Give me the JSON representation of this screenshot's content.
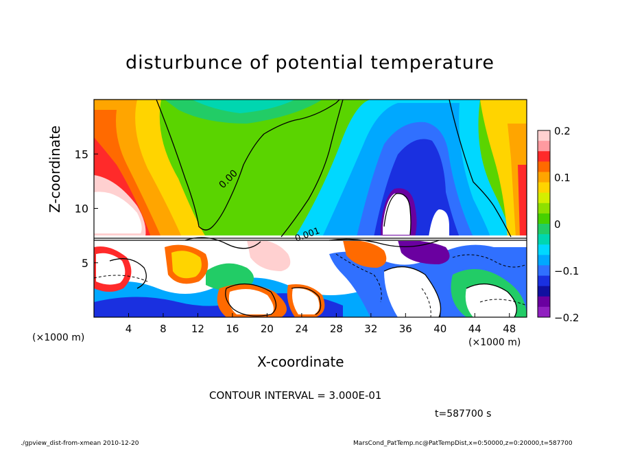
{
  "chart_data": {
    "type": "heatmap",
    "title": "disturbunce of potential temperature",
    "xlabel": "X-coordinate",
    "ylabel": "Z-coordinate",
    "x_unit_left": "(×1000 m)",
    "x_unit_right": "(×1000 m)",
    "xlim": [
      0,
      50
    ],
    "ylim": [
      0,
      20
    ],
    "xticks": [
      "4",
      "8",
      "12",
      "16",
      "20",
      "24",
      "28",
      "32",
      "36",
      "40",
      "44",
      "48"
    ],
    "yticks": [
      "5",
      "10",
      "15"
    ],
    "colorbar": {
      "ticks": [
        "0.2",
        "0.1",
        "0",
        "−0.1",
        "−0.2"
      ],
      "range": [
        -0.2,
        0.2
      ],
      "colors": [
        "#ffd0d0",
        "#ff9aa0",
        "#ff2a2a",
        "#ff6a00",
        "#ffa500",
        "#ffd400",
        "#d4ee00",
        "#8ee000",
        "#46d000",
        "#22cc66",
        "#00d6b0",
        "#00d8ff",
        "#00a8ff",
        "#3070ff",
        "#1a30e0",
        "#1010a0",
        "#6a00a0",
        "#9020c0"
      ]
    },
    "contour_labels": [
      "0.00",
      "0.001"
    ],
    "contour_interval": "CONTOUR INTERVAL = 3.000E-01",
    "time": "t=587700 s"
  },
  "footer": {
    "left": "./gpview_dist-from-xmean  2010-12-20",
    "right": "MarsCond_PatTemp.nc@PatTempDist,x=0:50000,z=0:20000,t=587700"
  }
}
